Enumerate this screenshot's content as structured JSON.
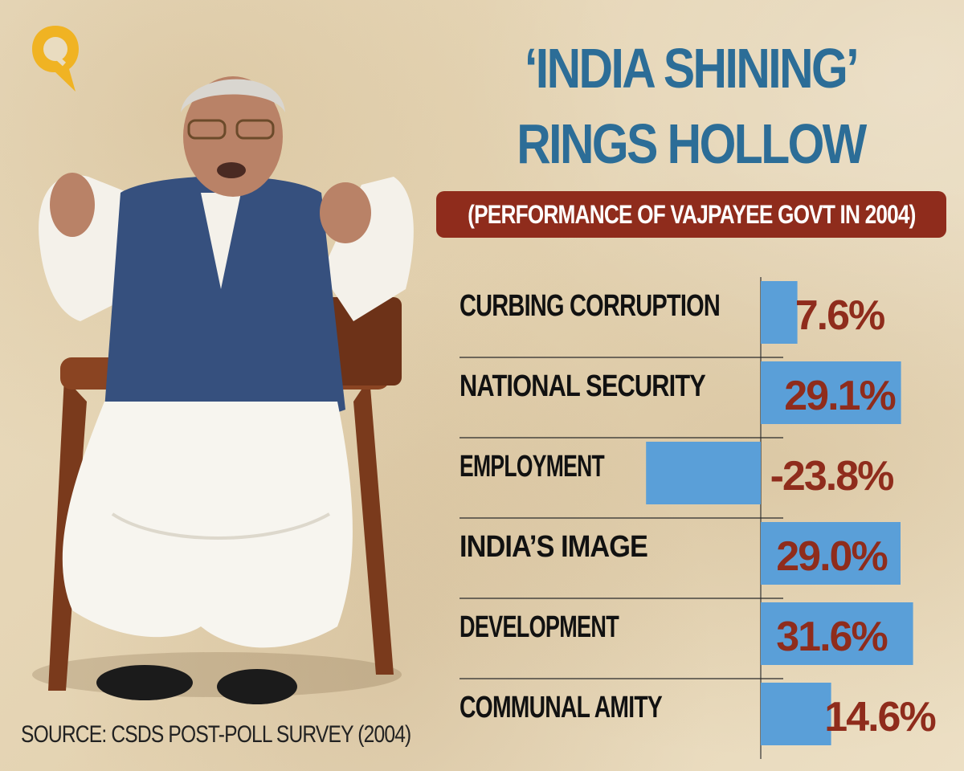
{
  "headline": {
    "line1": "‘INDIA SHINING’",
    "line2": "RINGS HOLLOW",
    "subtitle": "(PERFORMANCE OF VAJPAYEE GOVT IN 2004)"
  },
  "source": "SOURCE: CSDS POST-POLL SURVEY (2004)",
  "colors": {
    "bar": "#5a9fd8",
    "title": "#2c6d97",
    "value": "#8f2c1c",
    "banner": "#8f2c1c",
    "logo": "#f0b323"
  },
  "logo": {
    "icon": "the-quint-q-logo"
  },
  "chart_data": {
    "type": "bar",
    "orientation": "horizontal",
    "categories": [
      "CURBING CORRUPTION",
      "NATIONAL SECURITY",
      "EMPLOYMENT",
      "INDIA’S IMAGE",
      "DEVELOPMENT",
      "COMMUNAL AMITY"
    ],
    "values": [
      7.6,
      29.1,
      -23.8,
      29.0,
      31.6,
      14.6
    ],
    "value_labels": [
      "7.6%",
      "29.1%",
      "-23.8%",
      "29.0%",
      "31.6%",
      "14.6%"
    ],
    "unit": "%",
    "xlim": [
      -25,
      35
    ],
    "grid": false
  }
}
